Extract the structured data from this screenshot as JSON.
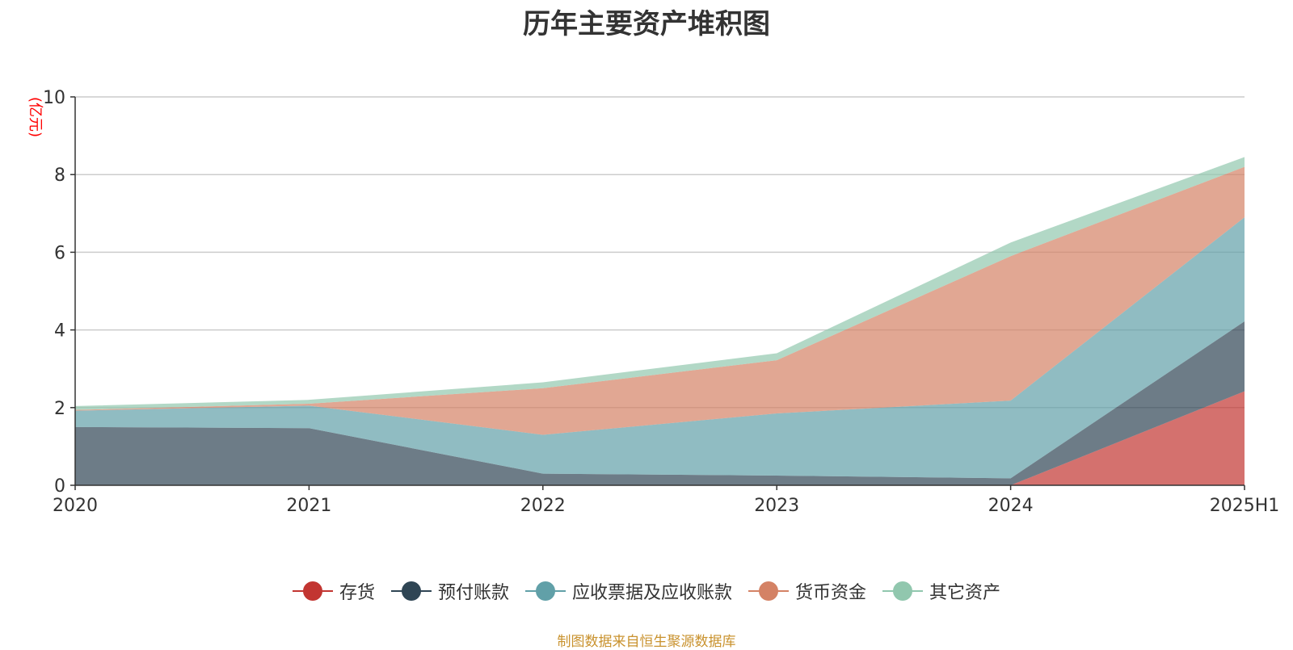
{
  "chart_data": {
    "type": "area",
    "stacked": true,
    "title": "历年主要资产堆积图",
    "ylabel": "(亿元)",
    "xlabel": "",
    "ylim": [
      0,
      10
    ],
    "yticks": [
      0,
      2,
      4,
      6,
      8,
      10
    ],
    "categories": [
      "2020",
      "2021",
      "2022",
      "2023",
      "2024",
      "2025H1"
    ],
    "grid": true,
    "legend_position": "bottom",
    "series": [
      {
        "name": "存货",
        "color": "#c23531",
        "values": [
          0,
          0,
          0,
          0,
          0,
          2.42
        ]
      },
      {
        "name": "预付账款",
        "color": "#2f4554",
        "values": [
          1.5,
          1.47,
          0.3,
          0.25,
          0.18,
          1.8
        ]
      },
      {
        "name": "应收票据及应收账款",
        "color": "#61a0a8",
        "values": [
          0.42,
          0.58,
          1.0,
          1.6,
          2.0,
          2.68
        ]
      },
      {
        "name": "货币资金",
        "color": "#d48265",
        "values": [
          0.02,
          0.05,
          1.2,
          1.37,
          3.72,
          1.3
        ]
      },
      {
        "name": "其它资产",
        "color": "#91c7ae",
        "values": [
          0.1,
          0.1,
          0.15,
          0.18,
          0.35,
          0.25
        ]
      }
    ],
    "source": "制图数据来自恒生聚源数据库"
  },
  "colors": {
    "unit_label": "#ff0000",
    "source_text": "#c9922e",
    "grid": "#cccccc",
    "axis": "#333333"
  }
}
